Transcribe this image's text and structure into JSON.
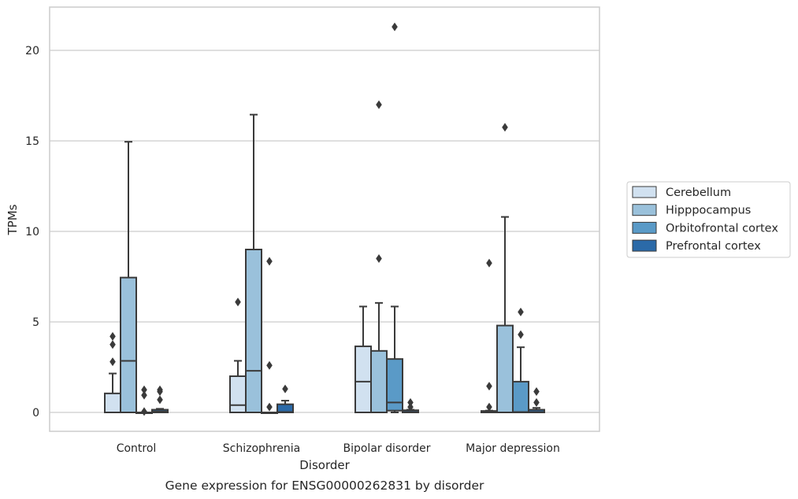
{
  "caption": "Gene expression for ENSG00000262831 by disorder",
  "chart_data": {
    "type": "boxplot",
    "xlabel": "Disorder",
    "ylabel": "TPMs",
    "ylim": [
      -1,
      22.4
    ],
    "yticks": [
      0,
      5,
      10,
      15,
      20
    ],
    "grid": "horizontal",
    "legend_position": "right",
    "categories": [
      "Control",
      "Schizophrenia",
      "Bipolar disorder",
      "Major depression"
    ],
    "series": [
      {
        "name": "Cerebellum",
        "color": "#d1e1f0",
        "boxes": [
          {
            "whislo": 0,
            "q1": 0,
            "med": 0,
            "q3": 1.05,
            "whishi": 2.15,
            "fliers": [
              2.8,
              3.75,
              4.2
            ]
          },
          {
            "whislo": 0,
            "q1": 0,
            "med": 0.4,
            "q3": 2.0,
            "whishi": 2.85,
            "fliers": [
              6.1
            ]
          },
          {
            "whislo": 0,
            "q1": 0,
            "med": 1.7,
            "q3": 3.65,
            "whishi": 5.85,
            "fliers": []
          },
          {
            "whislo": 0,
            "q1": 0,
            "med": 0.02,
            "q3": 0.08,
            "whishi": 0.1,
            "fliers": [
              0.3,
              1.45,
              8.25
            ]
          }
        ]
      },
      {
        "name": "Hipppocampus",
        "color": "#9ac1db",
        "boxes": [
          {
            "whislo": 0,
            "q1": 0,
            "med": 2.85,
            "q3": 7.45,
            "whishi": 14.95,
            "fliers": []
          },
          {
            "whislo": 0,
            "q1": 0,
            "med": 2.3,
            "q3": 9.0,
            "whishi": 16.45,
            "fliers": []
          },
          {
            "whislo": 0,
            "q1": 0,
            "med": 0,
            "q3": 3.4,
            "whishi": 6.05,
            "fliers": [
              8.5,
              17.0
            ]
          },
          {
            "whislo": 0,
            "q1": 0,
            "med": 0,
            "q3": 4.8,
            "whishi": 10.8,
            "fliers": [
              15.75
            ]
          }
        ]
      },
      {
        "name": "Orbitofrontal cortex",
        "color": "#5a9ac7",
        "boxes": [
          {
            "whislo": 0,
            "q1": 0,
            "med": 0,
            "q3": 0,
            "whishi": 0,
            "fliers": [
              0.05,
              0.95,
              1.25
            ]
          },
          {
            "whislo": 0,
            "q1": 0,
            "med": 0,
            "q3": 0,
            "whishi": 0,
            "fliers": [
              0.3,
              2.6,
              8.35
            ]
          },
          {
            "whislo": 0,
            "q1": 0.1,
            "med": 0.55,
            "q3": 2.95,
            "whishi": 5.85,
            "fliers": [
              21.3
            ]
          },
          {
            "whislo": 0,
            "q1": 0,
            "med": 0.02,
            "q3": 1.7,
            "whishi": 3.6,
            "fliers": [
              4.3,
              5.55
            ]
          }
        ]
      },
      {
        "name": "Prefrontal cortex",
        "color": "#2b6aa8",
        "boxes": [
          {
            "whislo": 0,
            "q1": 0,
            "med": 0.05,
            "q3": 0.15,
            "whishi": 0.2,
            "fliers": [
              0.7,
              1.15,
              1.25
            ]
          },
          {
            "whislo": 0,
            "q1": 0,
            "med": 0.02,
            "q3": 0.45,
            "whishi": 0.65,
            "fliers": [
              1.3
            ]
          },
          {
            "whislo": 0,
            "q1": 0,
            "med": 0.02,
            "q3": 0.12,
            "whishi": 0.15,
            "fliers": [
              0.3,
              0.55
            ]
          },
          {
            "whislo": 0,
            "q1": 0,
            "med": 0.02,
            "q3": 0.15,
            "whishi": 0.25,
            "fliers": [
              0.55,
              1.15
            ]
          }
        ]
      }
    ]
  }
}
